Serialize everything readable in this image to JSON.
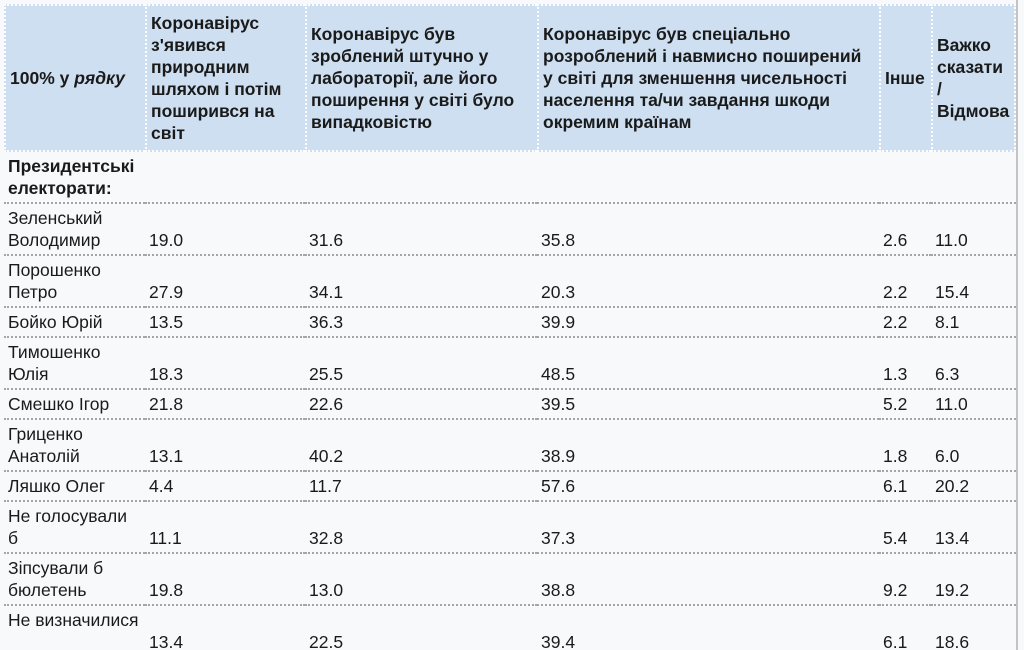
{
  "table": {
    "corner_label_prefix": "100% у ",
    "corner_label_italic": "рядку",
    "columns": [
      "Коронавірус з'явився природним шляхом і потім поширився на світ",
      "Коронавірус був зроблений штучно у лабораторії, але його поширення у світі було випадковістю",
      "Коронавірус був спеціально розроблений і навмисно поширений у світі для зменшення чисельності населення та/чи завдання шкоди окремим країнам",
      "Інше",
      "Важко сказати / Відмова"
    ],
    "group_label": "Президентські електорати:",
    "rows": [
      {
        "label": "Зеленський Володимир",
        "values": [
          "19.0",
          "31.6",
          "35.8",
          "2.6",
          "11.0"
        ]
      },
      {
        "label": "Порошенко Петро",
        "values": [
          "27.9",
          "34.1",
          "20.3",
          "2.2",
          "15.4"
        ]
      },
      {
        "label": "Бойко Юрій",
        "values": [
          "13.5",
          "36.3",
          "39.9",
          "2.2",
          "8.1"
        ]
      },
      {
        "label": "Тимошенко Юлія",
        "values": [
          "18.3",
          "25.5",
          "48.5",
          "1.3",
          "6.3"
        ]
      },
      {
        "label": "Смешко Ігор",
        "values": [
          "21.8",
          "22.6",
          "39.5",
          "5.2",
          "11.0"
        ]
      },
      {
        "label": "Гриценко Анатолій",
        "values": [
          "13.1",
          "40.2",
          "38.9",
          "1.8",
          "6.0"
        ]
      },
      {
        "label": "Ляшко Олег",
        "values": [
          "4.4",
          "11.7",
          "57.6",
          "6.1",
          "20.2"
        ]
      },
      {
        "label": "Не голосували б",
        "values": [
          "11.1",
          "32.8",
          "37.3",
          "5.4",
          "13.4"
        ]
      },
      {
        "label": "Зіпсували б бюлетень",
        "values": [
          "19.8",
          "13.0",
          "38.8",
          "9.2",
          "19.2"
        ]
      },
      {
        "label": "Не визначилися",
        "values": [
          "13.4",
          "22.5",
          "39.4",
          "6.1",
          "18.6"
        ]
      }
    ]
  },
  "colors": {
    "header_bg": "#cddff0",
    "body_bg": "#f8f9fb",
    "row_divider": "#a5a5a5"
  }
}
